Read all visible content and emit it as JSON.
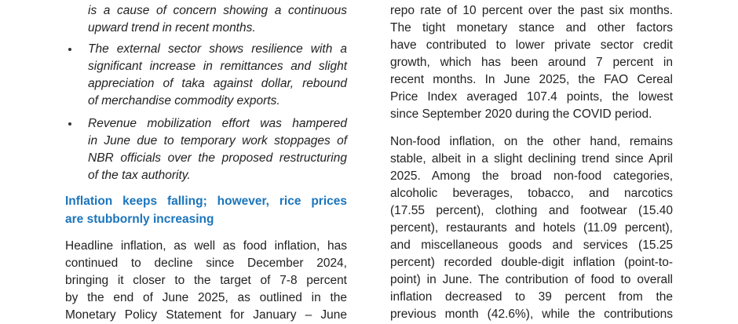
{
  "left": {
    "bullets": [
      {
        "lines": [
          "is a cause of concern showing a continuous",
          "upward trend in recent months."
        ]
      },
      {
        "lines": [
          "The external sector shows resilience with a",
          "significant increase in remittances and slight",
          "appreciation of taka against dollar, rebound",
          "of merchandise commodity exports."
        ]
      },
      {
        "lines": [
          "Revenue mobilization effort was hampered",
          "in June due to temporary work stoppages of",
          "NBR officials over the proposed restructuring",
          "of the tax authority."
        ]
      }
    ],
    "heading": {
      "lines": [
        "Inflation keeps falling; however, rice prices",
        "are stubbornly increasing"
      ]
    },
    "paragraph": {
      "lines": [
        "Headline inflation, as well as food inflation, has",
        "continued to decline since December 2024,",
        "bringing it closer to the target of 7-8 percent",
        "by the end of June 2025, as outlined in the",
        "Monetary Policy Statement for January – June"
      ]
    }
  },
  "right": {
    "paragraphs": [
      {
        "lines": [
          "repo rate of 10 percent over the past six months.",
          "The tight monetary stance and other factors",
          "have contributed to lower private sector credit",
          "growth, which has been around 7 percent in",
          "recent months. In June 2025, the FAO Cereal",
          "Price Index averaged 107.4 points, the lowest",
          "since September 2020 during the COVID period."
        ]
      },
      {
        "lines": [
          "Non-food inflation, on the other hand, remains",
          "stable, albeit in a slight declining trend since April",
          "2025. Among the broad non-food categories,",
          "alcoholic beverages, tobacco, and narcotics",
          "(17.55 percent), clothing and footwear (15.40",
          "percent), restaurants and hotels (11.09 percent),",
          "and miscellaneous goods and services (15.25",
          "percent) recorded double-digit inflation (point-to-",
          "point) in June. The contribution of food to overall",
          "inflation decreased to 39 percent from the",
          "previous month (42.6%), while the contributions"
        ]
      }
    ]
  }
}
